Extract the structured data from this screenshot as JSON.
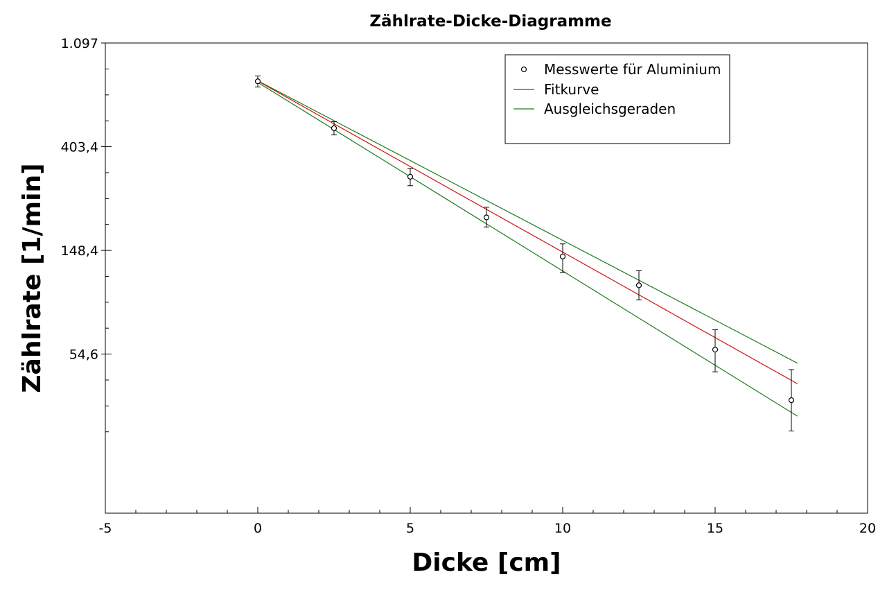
{
  "chart_data": {
    "type": "scatter",
    "title": "Zählrate-Dicke-Diagramme",
    "xlabel": "Dicke [cm]",
    "ylabel": "Zählrate [1/min]",
    "xlim": [
      -5,
      20
    ],
    "ylim": [
      11.77,
      1097
    ],
    "y_scale": "log",
    "x_ticks": [
      {
        "value": -5,
        "label": "-5"
      },
      {
        "value": 0,
        "label": "0"
      },
      {
        "value": 5,
        "label": "5"
      },
      {
        "value": 10,
        "label": "10"
      },
      {
        "value": 15,
        "label": "15"
      },
      {
        "value": 20,
        "label": "20"
      }
    ],
    "y_ticks": [
      {
        "value": 1097,
        "label": "1.097"
      },
      {
        "value": 403.4,
        "label": "403,4"
      },
      {
        "value": 148.4,
        "label": "148,4"
      },
      {
        "value": 54.6,
        "label": "54,6"
      }
    ],
    "legend_position": "top-right",
    "series": [
      {
        "name": "Messwerte für Aluminium",
        "kind": "points",
        "color": "#000000",
        "marker": "open-circle",
        "points": [
          {
            "x": 0,
            "y": 758,
            "err_low": 718,
            "err_high": 798
          },
          {
            "x": 2.5,
            "y": 482,
            "err_low": 452,
            "err_high": 514
          },
          {
            "x": 5,
            "y": 302,
            "err_low": 277,
            "err_high": 327
          },
          {
            "x": 7.5,
            "y": 204,
            "err_low": 186,
            "err_high": 225
          },
          {
            "x": 10,
            "y": 140,
            "err_low": 120,
            "err_high": 158
          },
          {
            "x": 12.5,
            "y": 106,
            "err_low": 92,
            "err_high": 122
          },
          {
            "x": 15,
            "y": 57,
            "err_low": 46,
            "err_high": 69
          },
          {
            "x": 17.5,
            "y": 35,
            "err_low": 26,
            "err_high": 47
          }
        ]
      },
      {
        "name": "Fitkurve",
        "kind": "line",
        "color": "#d01010",
        "x": [
          0,
          17.7
        ],
        "y": [
          760,
          41
        ]
      },
      {
        "name": "Ausgleichsgeraden",
        "kind": "line",
        "color": "#1a7a1a",
        "lines": [
          {
            "x": [
              0,
              17.7
            ],
            "y": [
              762,
              50
            ]
          },
          {
            "x": [
              0,
              17.7
            ],
            "y": [
              750,
              30
            ]
          }
        ]
      }
    ]
  }
}
